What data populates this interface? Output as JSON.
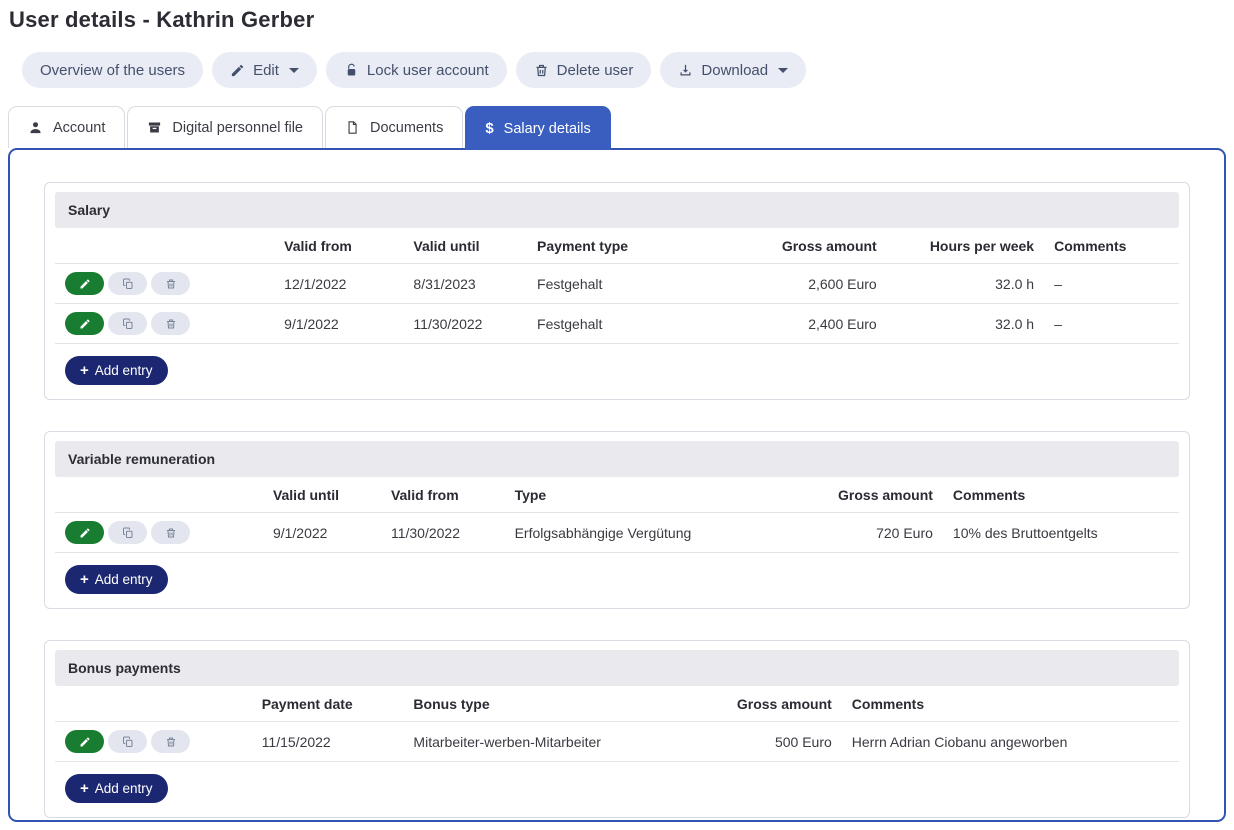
{
  "page": {
    "title": "User details - Kathrin Gerber"
  },
  "toolbar": {
    "overview_label": "Overview of the users",
    "edit_label": "Edit",
    "lock_label": "Lock user account",
    "delete_label": "Delete user",
    "download_label": "Download"
  },
  "tabs": [
    {
      "label": "Account",
      "icon": "user-icon",
      "active": false
    },
    {
      "label": "Digital personnel file",
      "icon": "archive-icon",
      "active": false
    },
    {
      "label": "Documents",
      "icon": "document-icon",
      "active": false
    },
    {
      "label": "Salary details",
      "icon": "dollar-icon",
      "active": true
    }
  ],
  "row_actions": [
    {
      "icon": "pencil-icon",
      "name": "edit-row-button"
    },
    {
      "icon": "copy-icon",
      "name": "copy-row-button"
    },
    {
      "icon": "trash-icon",
      "name": "delete-row-button"
    }
  ],
  "sections": [
    {
      "title": "Salary",
      "add_label": "Add entry",
      "columns": [
        {
          "label": "Valid from",
          "align": "left"
        },
        {
          "label": "Valid until",
          "align": "left"
        },
        {
          "label": "Payment type",
          "align": "left"
        },
        {
          "label": "Gross amount",
          "align": "right"
        },
        {
          "label": "Hours per week",
          "align": "right"
        },
        {
          "label": "Comments",
          "align": "left"
        }
      ],
      "rows": [
        [
          "12/1/2022",
          "8/31/2023",
          "Festgehalt",
          "2,600 Euro",
          "32.0 h",
          "–"
        ],
        [
          "9/1/2022",
          "11/30/2022",
          "Festgehalt",
          "2,400 Euro",
          "32.0 h",
          "–"
        ]
      ]
    },
    {
      "title": "Variable remuneration",
      "add_label": "Add entry",
      "columns": [
        {
          "label": "Valid until",
          "align": "left"
        },
        {
          "label": "Valid from",
          "align": "left"
        },
        {
          "label": "Type",
          "align": "left"
        },
        {
          "label": "Gross amount",
          "align": "right"
        },
        {
          "label": "Comments",
          "align": "left"
        }
      ],
      "rows": [
        [
          "9/1/2022",
          "11/30/2022",
          "Erfolgsabhängige Vergütung",
          "720 Euro",
          "10% des Bruttoentgelts"
        ]
      ]
    },
    {
      "title": "Bonus payments",
      "add_label": "Add entry",
      "columns": [
        {
          "label": "Payment date",
          "align": "left"
        },
        {
          "label": "Bonus type",
          "align": "left"
        },
        {
          "label": "Gross amount",
          "align": "right"
        },
        {
          "label": "Comments",
          "align": "left"
        }
      ],
      "rows": [
        [
          "11/15/2022",
          "Mitarbeiter-werben-Mitarbeiter",
          "500 Euro",
          "Herrn Adrian Ciobanu angeworben"
        ]
      ]
    }
  ]
}
